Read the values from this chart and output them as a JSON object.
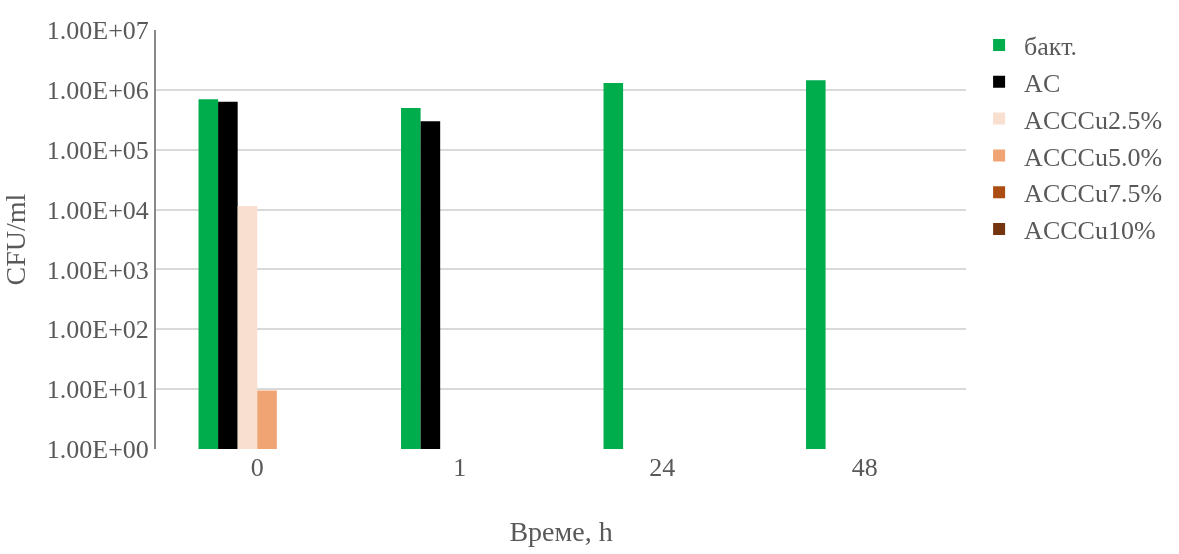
{
  "chart_data": {
    "type": "bar",
    "xlabel": "Време, h",
    "ylabel": "CFU/ml",
    "categories": [
      "0",
      "1",
      "24",
      "48"
    ],
    "series": [
      {
        "name": "бакт.",
        "color": "#00ad4d",
        "values": [
          700000,
          500000,
          1300000,
          1450000
        ]
      },
      {
        "name": "AC",
        "color": "#000000",
        "values": [
          630000,
          300000,
          null,
          null
        ]
      },
      {
        "name": "ACCCu2.5%",
        "color": "#f9dfd0",
        "values": [
          11500,
          null,
          null,
          null
        ]
      },
      {
        "name": "ACCCu5.0%",
        "color": "#f0a473",
        "values": [
          9.5,
          null,
          null,
          null
        ]
      },
      {
        "name": "ACCCu7.5%",
        "color": "#ab4d12",
        "values": [
          null,
          null,
          null,
          null
        ]
      },
      {
        "name": "ACCCu10%",
        "color": "#74340f",
        "values": [
          null,
          null,
          null,
          null
        ]
      }
    ],
    "log": "y",
    "ylim": [
      1,
      10000000
    ],
    "yticks": [
      {
        "value": 1,
        "label": "1.00E+00"
      },
      {
        "value": 10,
        "label": "1.00E+01"
      },
      {
        "value": 100,
        "label": "1.00E+02"
      },
      {
        "value": 1000,
        "label": "1.00E+03"
      },
      {
        "value": 10000,
        "label": "1.00E+04"
      },
      {
        "value": 100000,
        "label": "1.00E+05"
      },
      {
        "value": 1000000,
        "label": "1.00E+06"
      },
      {
        "value": 10000000,
        "label": "1.00E+07"
      }
    ],
    "grid": "y",
    "legend": "top right"
  }
}
